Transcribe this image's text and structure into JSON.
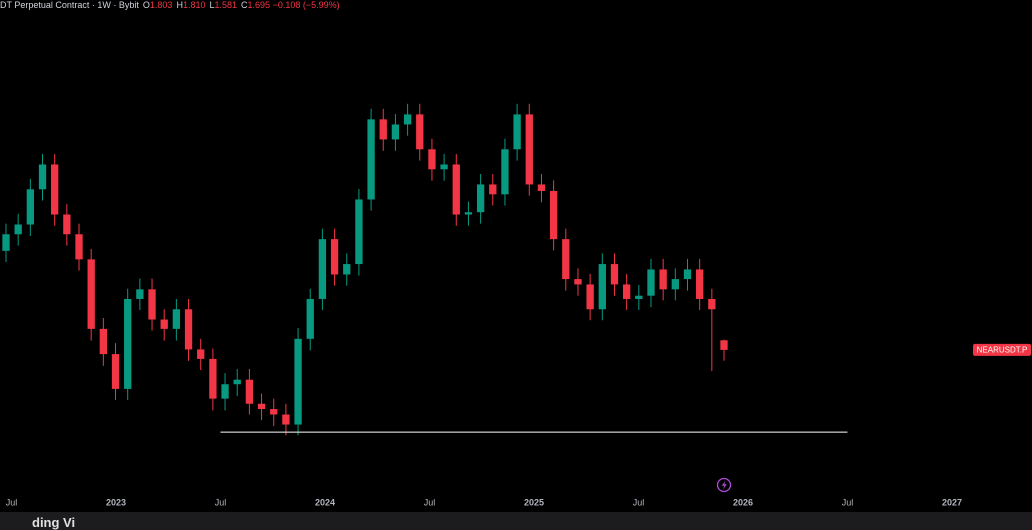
{
  "header": {
    "title": "DT Perpetual Contract · 1W · Bybit",
    "ohlc": [
      {
        "label": "O",
        "value": "1.803"
      },
      {
        "label": "H",
        "value": "1.810"
      },
      {
        "label": "L",
        "value": "1.581"
      },
      {
        "label": "C",
        "value": "1.695"
      }
    ],
    "change": "−0.108 (−5.99%)"
  },
  "chart_data": {
    "type": "candlestick",
    "log": true,
    "symbol_label": "NEARUSDT.P",
    "up_color": "#089981",
    "down_color": "#f23645",
    "open": [
      3.2,
      3.56,
      3.79,
      4.75,
      5.57,
      4.04,
      3.56,
      3.03,
      1.94,
      1.65,
      1.32,
      2.35,
      2.5,
      2.06,
      1.94,
      2.2,
      1.7,
      1.6,
      1.24,
      1.36,
      1.4,
      1.2,
      1.16,
      1.12,
      1.05,
      1.82,
      2.35,
      3.45,
      2.75,
      2.94,
      4.45,
      7.44,
      6.54,
      7.2,
      7.68,
      6.14,
      5.4,
      5.57,
      4.04,
      4.1,
      4.9,
      4.6,
      6.14,
      7.68,
      4.9,
      4.7,
      3.45,
      2.67,
      2.58,
      2.2,
      2.94,
      2.58,
      2.35,
      2.4,
      2.84,
      2.5,
      2.67,
      2.84,
      2.35,
      1.803
    ],
    "high": [
      3.81,
      4.06,
      5.08,
      5.96,
      5.96,
      4.32,
      3.81,
      3.24,
      2.08,
      1.77,
      2.51,
      2.68,
      2.68,
      2.2,
      2.35,
      2.35,
      1.82,
      1.71,
      1.46,
      1.5,
      1.5,
      1.28,
      1.24,
      1.2,
      1.95,
      2.51,
      3.69,
      3.69,
      3.15,
      4.76,
      7.96,
      7.96,
      7.7,
      8.22,
      8.22,
      6.57,
      5.96,
      5.96,
      4.39,
      5.24,
      5.24,
      6.57,
      8.22,
      8.22,
      5.24,
      5.03,
      3.69,
      2.86,
      2.76,
      3.15,
      3.15,
      2.76,
      2.57,
      3.04,
      3.04,
      2.86,
      3.04,
      3.04,
      2.51,
      1.81
    ],
    "low": [
      2.98,
      3.31,
      3.52,
      4.42,
      3.76,
      3.31,
      2.82,
      1.8,
      1.53,
      1.23,
      1.23,
      2.19,
      1.92,
      1.8,
      1.8,
      1.58,
      1.49,
      1.15,
      1.15,
      1.26,
      1.12,
      1.08,
      1.04,
      0.98,
      0.98,
      1.69,
      2.19,
      2.56,
      2.56,
      2.73,
      4.14,
      6.08,
      6.08,
      6.7,
      5.71,
      5.02,
      5.02,
      3.76,
      3.76,
      3.81,
      4.28,
      4.28,
      5.71,
      4.56,
      4.37,
      3.21,
      2.48,
      2.4,
      2.05,
      2.05,
      2.4,
      2.19,
      2.19,
      2.23,
      2.33,
      2.33,
      2.48,
      2.19,
      1.48,
      1.581
    ],
    "close": [
      3.56,
      3.79,
      4.75,
      5.57,
      4.04,
      3.56,
      3.03,
      1.94,
      1.65,
      1.32,
      2.35,
      2.5,
      2.06,
      1.94,
      2.2,
      1.7,
      1.6,
      1.24,
      1.36,
      1.4,
      1.2,
      1.16,
      1.12,
      1.05,
      1.82,
      2.35,
      3.45,
      2.75,
      2.94,
      4.45,
      7.44,
      6.54,
      7.2,
      7.68,
      6.14,
      5.4,
      5.57,
      4.04,
      4.1,
      4.9,
      4.6,
      6.14,
      7.68,
      4.9,
      4.7,
      3.45,
      2.67,
      2.58,
      2.2,
      2.94,
      2.58,
      2.35,
      2.4,
      2.84,
      2.5,
      2.67,
      2.84,
      2.35,
      2.2,
      1.695
    ],
    "ylim": [
      0.69,
      16
    ],
    "xlim": [
      2022.445,
      2027.383
    ],
    "xticks": [
      {
        "value": 2022.5,
        "label": "Jul"
      },
      2023,
      {
        "value": 2023.5,
        "label": "Jul"
      },
      2024,
      {
        "value": 2024.5,
        "label": "Jul"
      },
      2025,
      {
        "value": 2025.5,
        "label": "Jul"
      },
      2026,
      {
        "value": 2026.5,
        "label": "Jul"
      },
      2027
    ],
    "hline": {
      "y": 1.0,
      "x": [
        2023.5,
        2026.5
      ],
      "color": "#ffffff"
    }
  },
  "footer": {
    "text": "ding Vi"
  }
}
